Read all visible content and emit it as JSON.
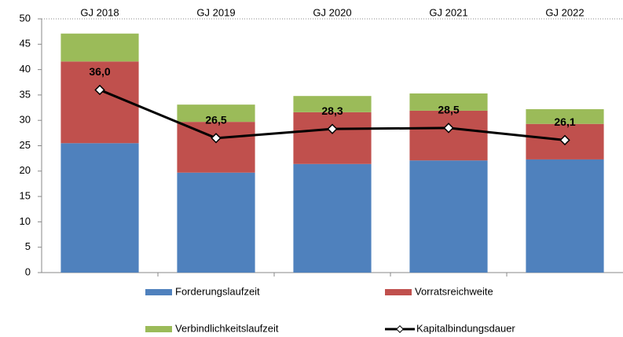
{
  "chart_data": {
    "type": "bar",
    "categories": [
      "GJ 2018",
      "GJ 2019",
      "GJ 2020",
      "GJ 2021",
      "GJ 2022"
    ],
    "series": [
      {
        "name": "Forderungslaufzeit",
        "color": "#4f81bd",
        "values": [
          25.5,
          19.7,
          21.4,
          22.1,
          22.3
        ]
      },
      {
        "name": "Vorratsreichweite",
        "color": "#c0504d",
        "values": [
          16.1,
          10.0,
          10.2,
          9.8,
          7.0
        ]
      },
      {
        "name": "Verbindlichkeitslaufzeit",
        "color": "#9bbb59",
        "values": [
          5.5,
          3.4,
          3.2,
          3.4,
          2.9
        ]
      },
      {
        "name": "Kapitalbindungsdauer",
        "type": "line",
        "color": "#000000",
        "values": [
          36.0,
          26.5,
          28.3,
          28.5,
          26.1
        ],
        "value_labels": [
          "36,0",
          "26,5",
          "28,3",
          "28,5",
          "26,1"
        ]
      }
    ],
    "stacked": true,
    "ylim": [
      0,
      50
    ],
    "yticks": [
      0,
      5,
      10,
      15,
      20,
      25,
      30,
      35,
      40,
      45,
      50
    ],
    "grid": false,
    "legend": "bottom"
  }
}
